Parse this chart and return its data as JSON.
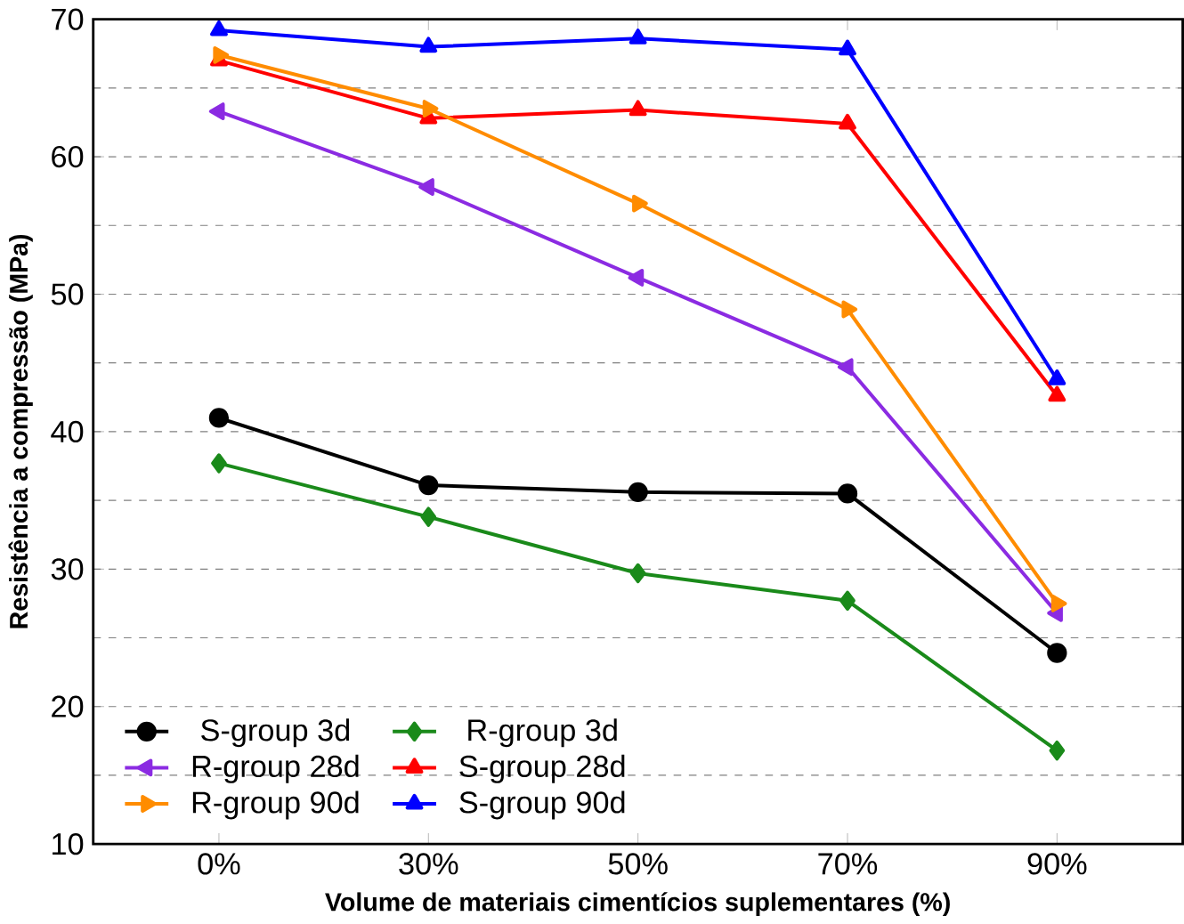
{
  "chart_data": {
    "type": "line",
    "xlabel": "Volume de materiais cimentícios suplementares (%)",
    "ylabel": "Resistência a compressão (MPa)",
    "categories": [
      "0%",
      "30%",
      "50%",
      "70%",
      "90%"
    ],
    "series": [
      {
        "name": "S-group 3d",
        "color": "#000000",
        "marker": "circle",
        "values": [
          41.0,
          36.1,
          35.6,
          35.5,
          23.9
        ]
      },
      {
        "name": "R-group 3d",
        "color": "#1a8a1a",
        "marker": "diamond",
        "values": [
          37.7,
          33.8,
          29.7,
          27.7,
          16.8
        ]
      },
      {
        "name": "R-group 28d",
        "color": "#8b2be2",
        "marker": "triangle-left",
        "values": [
          63.3,
          57.8,
          51.2,
          44.7,
          26.8
        ]
      },
      {
        "name": "S-group 28d",
        "color": "#ff0000",
        "marker": "triangle",
        "values": [
          67.0,
          62.8,
          63.4,
          62.4,
          42.6
        ]
      },
      {
        "name": "R-group 90d",
        "color": "#ff8c00",
        "marker": "triangle-right",
        "values": [
          67.4,
          63.5,
          56.6,
          48.9,
          27.5
        ]
      },
      {
        "name": "S-group 90d",
        "color": "#0000ff",
        "marker": "triangle",
        "values": [
          69.2,
          68.0,
          68.6,
          67.8,
          43.8
        ]
      }
    ],
    "ylim": [
      10,
      70
    ],
    "yticks": [
      10,
      20,
      30,
      40,
      50,
      60,
      70
    ],
    "grid": "y",
    "legend": "bottom left"
  }
}
